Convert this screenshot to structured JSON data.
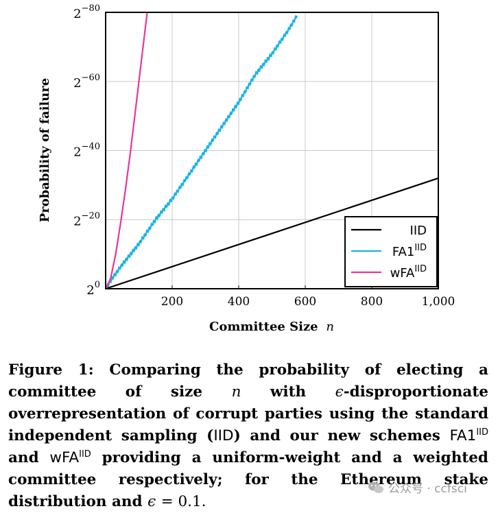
{
  "chart_data": {
    "type": "line",
    "ylabel": "Probability of failure",
    "xlabel": "Committee Size",
    "xlabel_var": "n",
    "xlim": [
      0,
      1000
    ],
    "ylim_log2": [
      -80,
      0
    ],
    "x_ticks": [
      200,
      400,
      600,
      800,
      1000
    ],
    "x_tick_labels": [
      "200",
      "400",
      "600",
      "800",
      "1,000"
    ],
    "y_ticks_log2": [
      0,
      -20,
      -40,
      -60,
      -80
    ],
    "y_tick_bases": [
      "2",
      "2",
      "2",
      "2",
      "2"
    ],
    "y_tick_exponents": [
      "0",
      "−20",
      "−40",
      "−60",
      "−80"
    ],
    "grid": true,
    "legend_position": "bottom-right",
    "series": [
      {
        "name": "IID",
        "name_base": "IID",
        "name_sup": "",
        "color": "#000000",
        "x": [
          0,
          1000
        ],
        "y_log2": [
          0,
          -32
        ]
      },
      {
        "name": "FA1^IID",
        "name_base": "FA1",
        "name_sup": "IID",
        "color": "#1ab2e8",
        "x": [
          0,
          20,
          50,
          100,
          150,
          200,
          250,
          300,
          350,
          400,
          450,
          500,
          550,
          575
        ],
        "y_log2": [
          0,
          -3,
          -7,
          -13,
          -20,
          -26,
          -33,
          -40,
          -47,
          -54,
          -62,
          -68,
          -75,
          -79
        ]
      },
      {
        "name": "wFA^IID",
        "name_base": "wFA",
        "name_sup": "IID",
        "color": "#e8359a",
        "x": [
          0,
          15,
          30,
          45,
          60,
          75,
          90,
          105,
          125
        ],
        "y_log2": [
          0,
          -3,
          -10,
          -19,
          -29,
          -40,
          -52,
          -64,
          -80
        ]
      }
    ]
  },
  "caption": {
    "label": "Figure 1:",
    "t1": "Comparing the probability of electing a committee of size",
    "var_n": "n",
    "t2": "with",
    "var_eps": "ϵ",
    "t3": "-disproportionate overrepresentation of corrupt parties using the standard independent sampling (",
    "iid": "IID",
    "t4": ") and our new schemes",
    "fa1": "FA1",
    "sup1": "IID",
    "t5": "and",
    "wfa": "wFA",
    "sup2": "IID",
    "t6": "providing a uniform-weight and a weighted committee respectively; for the Ethereum stake distribution and",
    "eq": "= 0.1."
  },
  "watermark": {
    "text": "公众号 · ccfsci"
  }
}
